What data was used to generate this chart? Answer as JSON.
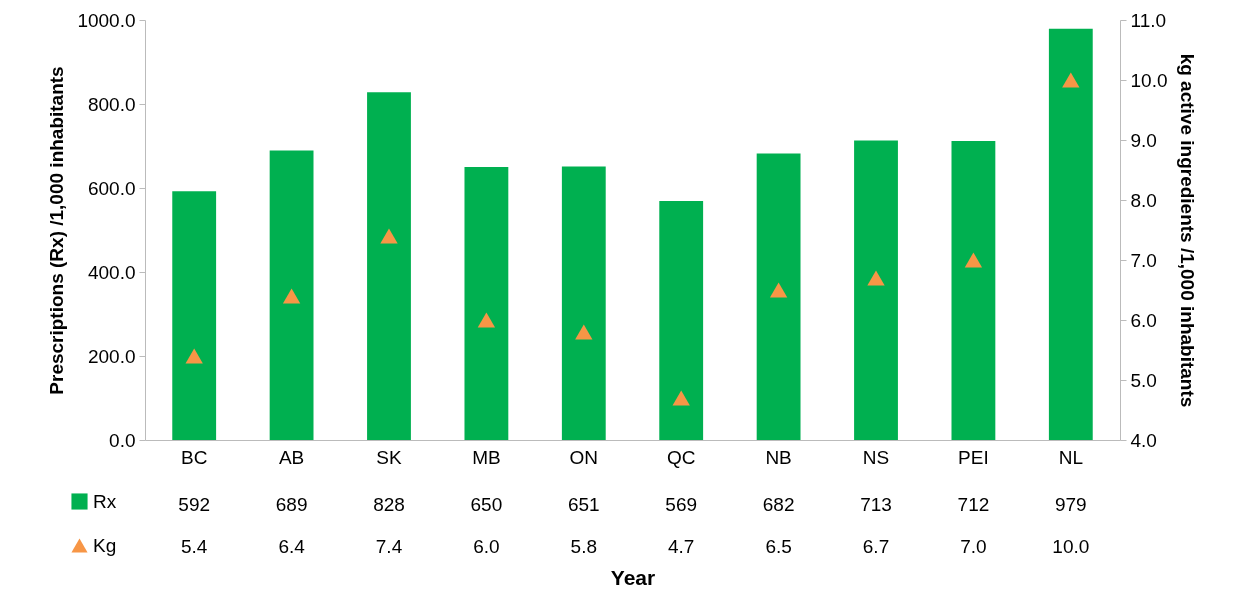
{
  "chart_data": {
    "type": "bar",
    "xlabel": "Year",
    "ylabel": "Prescriptions (Rx) /1,000 inhabitants",
    "y2label": "kg active ingredients /1,000 inhabitants",
    "categories": [
      "BC",
      "AB",
      "SK",
      "MB",
      "ON",
      "QC",
      "NB",
      "NS",
      "PEI",
      "NL"
    ],
    "series": [
      {
        "name": "Rx",
        "color": "#00b050",
        "values": [
          592,
          689,
          828,
          650,
          651,
          569,
          682,
          713,
          712,
          979
        ],
        "value_labels": [
          "592",
          "689",
          "828",
          "650",
          "651",
          "569",
          "682",
          "713",
          "712",
          "979"
        ]
      },
      {
        "name": "Kg",
        "type": "scatter",
        "axis": "y2",
        "marker": "triangle",
        "color": "#f79646",
        "values": [
          5.4,
          6.4,
          7.4,
          6.0,
          5.8,
          4.7,
          6.5,
          6.7,
          7.0,
          10.0
        ],
        "value_labels": [
          "5.4",
          "6.4",
          "7.4",
          "6.0",
          "5.8",
          "4.7",
          "6.5",
          "6.7",
          "7.0",
          "10.0"
        ]
      }
    ],
    "ylim": [
      0,
      1000
    ],
    "yticks": [
      {
        "value": 0,
        "label": "0.0"
      },
      {
        "value": 200,
        "label": "200.0"
      },
      {
        "value": 400,
        "label": "400.0"
      },
      {
        "value": 600,
        "label": "600.0"
      },
      {
        "value": 800,
        "label": "800.0"
      },
      {
        "value": 1000,
        "label": "1000.0"
      }
    ],
    "y2lim": [
      4,
      11
    ],
    "y2ticks": [
      {
        "value": 4,
        "label": "4.0"
      },
      {
        "value": 5,
        "label": "5.0"
      },
      {
        "value": 6,
        "label": "6.0"
      },
      {
        "value": 7,
        "label": "7.0"
      },
      {
        "value": 8,
        "label": "8.0"
      },
      {
        "value": 9,
        "label": "9.0"
      },
      {
        "value": 10,
        "label": "10.0"
      },
      {
        "value": 11,
        "label": "11.0"
      }
    ],
    "legend": "bottom left",
    "grid": false
  }
}
